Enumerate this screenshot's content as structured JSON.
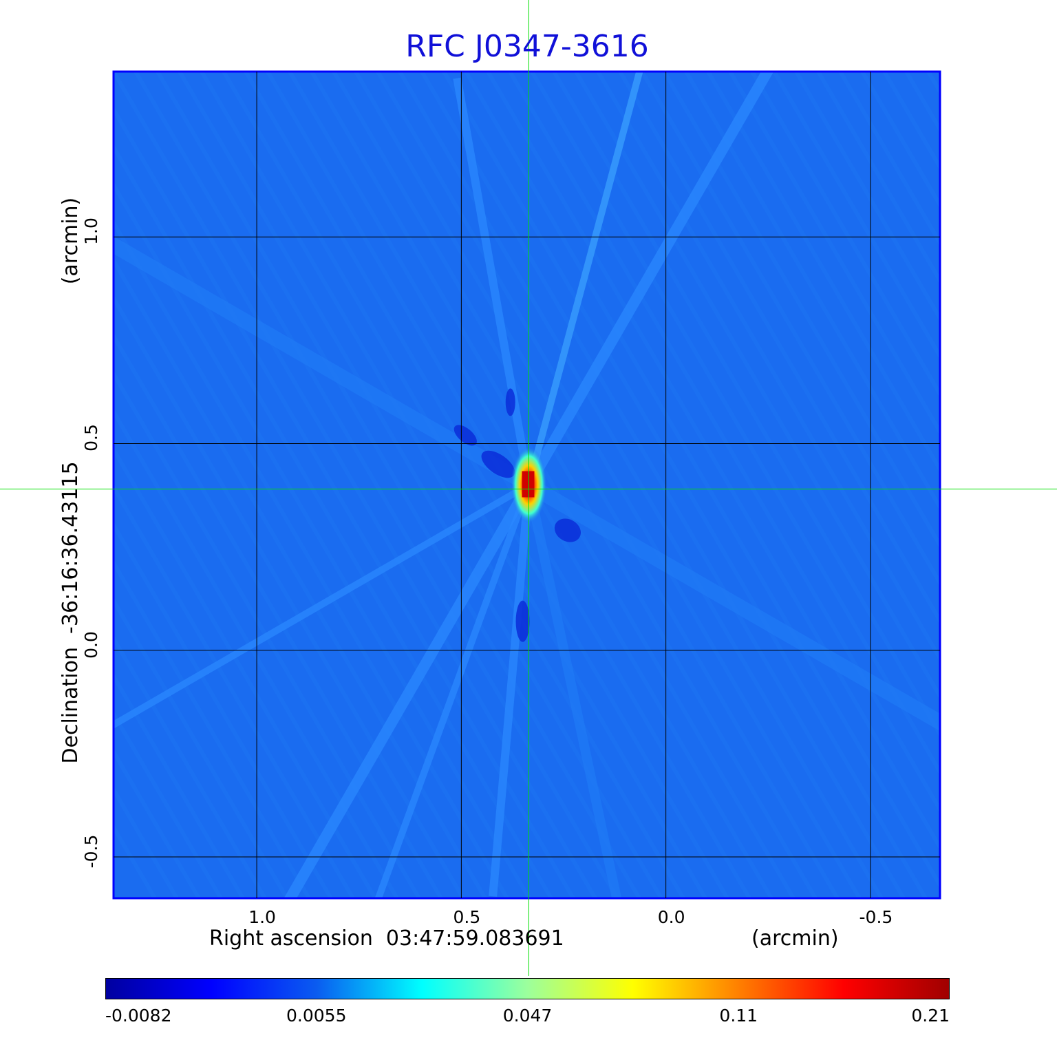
{
  "chart_data": {
    "type": "heatmap",
    "title": "RFC J0347-3616",
    "xlabel": "Right ascension  03:47:59.083691",
    "x_unit": "(arcmin)",
    "ylabel": "Declination  -36:16:36.43115",
    "y_unit": "(arcmin)",
    "x_ticks": [
      "1.0",
      "0.5",
      "0.0",
      "-0.5"
    ],
    "x_tick_values": [
      1.0,
      0.5,
      0.0,
      -0.5
    ],
    "y_ticks": [
      "1.0",
      "0.5",
      "0.0",
      "-0.5"
    ],
    "y_tick_values": [
      1.0,
      0.5,
      0.0,
      -0.5
    ],
    "xlim": [
      1.35,
      -0.67
    ],
    "ylim": [
      -0.6,
      1.4
    ],
    "grid": true,
    "crosshair": {
      "x": 0.335,
      "y": 0.39,
      "color": "#00e000"
    },
    "peak": {
      "x": 0.335,
      "y": 0.4,
      "value": 0.21
    },
    "colorbar": {
      "ticks": [
        "-0.0082",
        "0.0055",
        "0.047",
        "0.11",
        "0.21"
      ],
      "colormap": [
        "#0000a0",
        "#0000ff",
        "#0a5cf0",
        "#00ffff",
        "#9cff9c",
        "#ffff00",
        "#ff8000",
        "#ff0000",
        "#a00000"
      ]
    },
    "background_color": "#1a6cf0"
  }
}
